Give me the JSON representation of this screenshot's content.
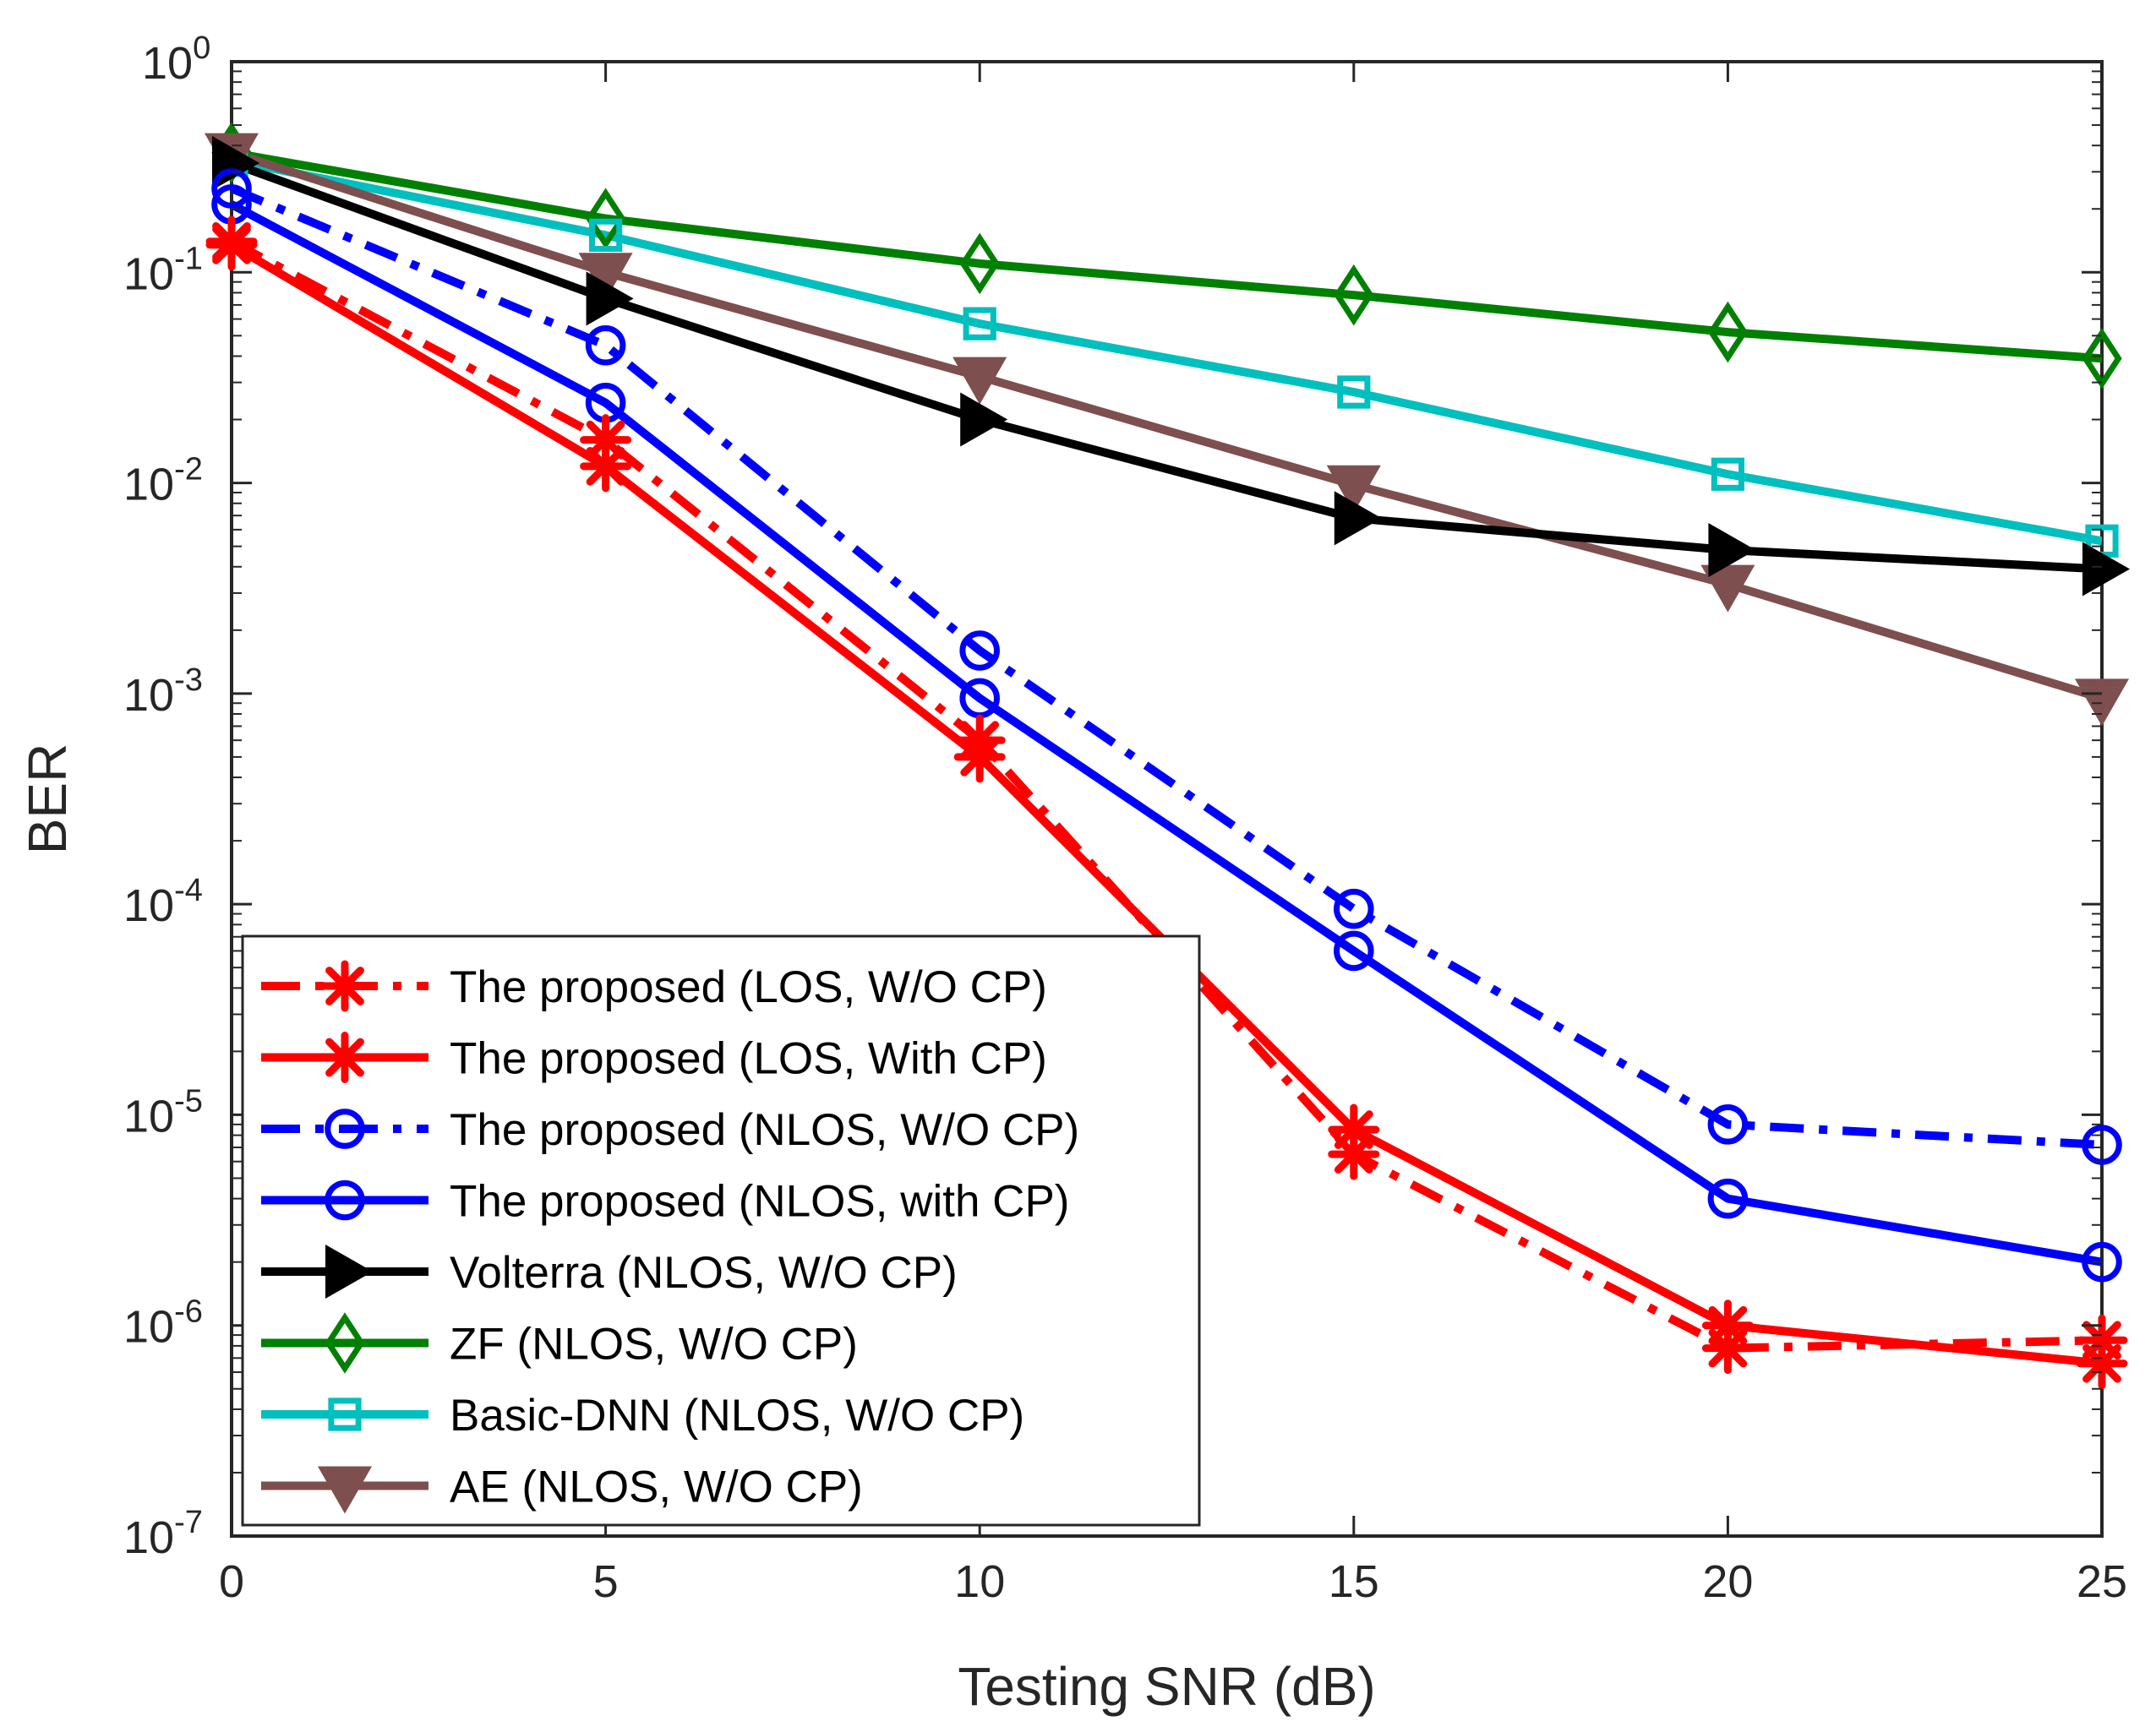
{
  "chart_data": {
    "type": "line",
    "title": "",
    "xlabel": "Testing SNR (dB)",
    "ylabel": "BER",
    "yscale": "log",
    "xlim": [
      0,
      25
    ],
    "ylim": [
      1e-07,
      1
    ],
    "xticks": [
      0,
      5,
      10,
      15,
      20,
      25
    ],
    "xtick_labels": [
      "0",
      "5",
      "10",
      "15",
      "20",
      "25"
    ],
    "yticks": [
      {
        "base": "10",
        "exp": "0",
        "value": 1
      },
      {
        "base": "10",
        "exp": "-1",
        "value": 0.1
      },
      {
        "base": "10",
        "exp": "-2",
        "value": 0.01
      },
      {
        "base": "10",
        "exp": "-3",
        "value": 0.001
      },
      {
        "base": "10",
        "exp": "-4",
        "value": 0.0001
      },
      {
        "base": "10",
        "exp": "-5",
        "value": 1e-05
      },
      {
        "base": "10",
        "exp": "-6",
        "value": 1e-06
      },
      {
        "base": "10",
        "exp": "-7",
        "value": 1e-07
      }
    ],
    "grid": false,
    "legend_position": "bottom-left",
    "x": [
      0,
      5,
      10,
      15,
      20,
      25
    ],
    "series": [
      {
        "name": "The proposed (LOS, W/O CP)",
        "color": "#ff0000",
        "dash": "dashdot",
        "marker": "asterisk",
        "values": [
          0.14,
          0.016,
          0.0006,
          6.5e-06,
          7.8e-07,
          8.5e-07
        ]
      },
      {
        "name": "The proposed (LOS, With CP)",
        "color": "#ff0000",
        "dash": "solid",
        "marker": "asterisk",
        "values": [
          0.135,
          0.012,
          0.0005,
          8.5e-06,
          1e-06,
          6.6e-07
        ]
      },
      {
        "name": "The proposed (NLOS, W/O CP)",
        "color": "#0000ff",
        "dash": "dashdot",
        "marker": "circle",
        "values": [
          0.25,
          0.045,
          0.0016,
          9.5e-05,
          9e-06,
          7.2e-06
        ]
      },
      {
        "name": "The proposed (NLOS, with CP)",
        "color": "#0000ff",
        "dash": "solid",
        "marker": "circle",
        "values": [
          0.21,
          0.024,
          0.00095,
          6e-05,
          4e-06,
          2e-06
        ]
      },
      {
        "name": "Volterra (NLOS, W/O CP)",
        "color": "#000000",
        "dash": "solid",
        "marker": "triangle-right",
        "values": [
          0.33,
          0.075,
          0.02,
          0.0068,
          0.0048,
          0.0039
        ]
      },
      {
        "name": "ZF (NLOS, W/O CP)",
        "color": "#008000",
        "dash": "solid",
        "marker": "diamond",
        "values": [
          0.37,
          0.18,
          0.11,
          0.078,
          0.052,
          0.039
        ]
      },
      {
        "name": "Basic-DNN (NLOS, W/O CP)",
        "color": "#00bfbf",
        "dash": "solid",
        "marker": "square",
        "values": [
          0.34,
          0.15,
          0.057,
          0.027,
          0.011,
          0.0053
        ]
      },
      {
        "name": "AE (NLOS, W/O CP)",
        "color": "#7e4f4f",
        "dash": "solid",
        "marker": "triangle-down",
        "values": [
          0.37,
          0.1,
          0.032,
          0.0098,
          0.0033,
          0.00095
        ]
      }
    ]
  }
}
